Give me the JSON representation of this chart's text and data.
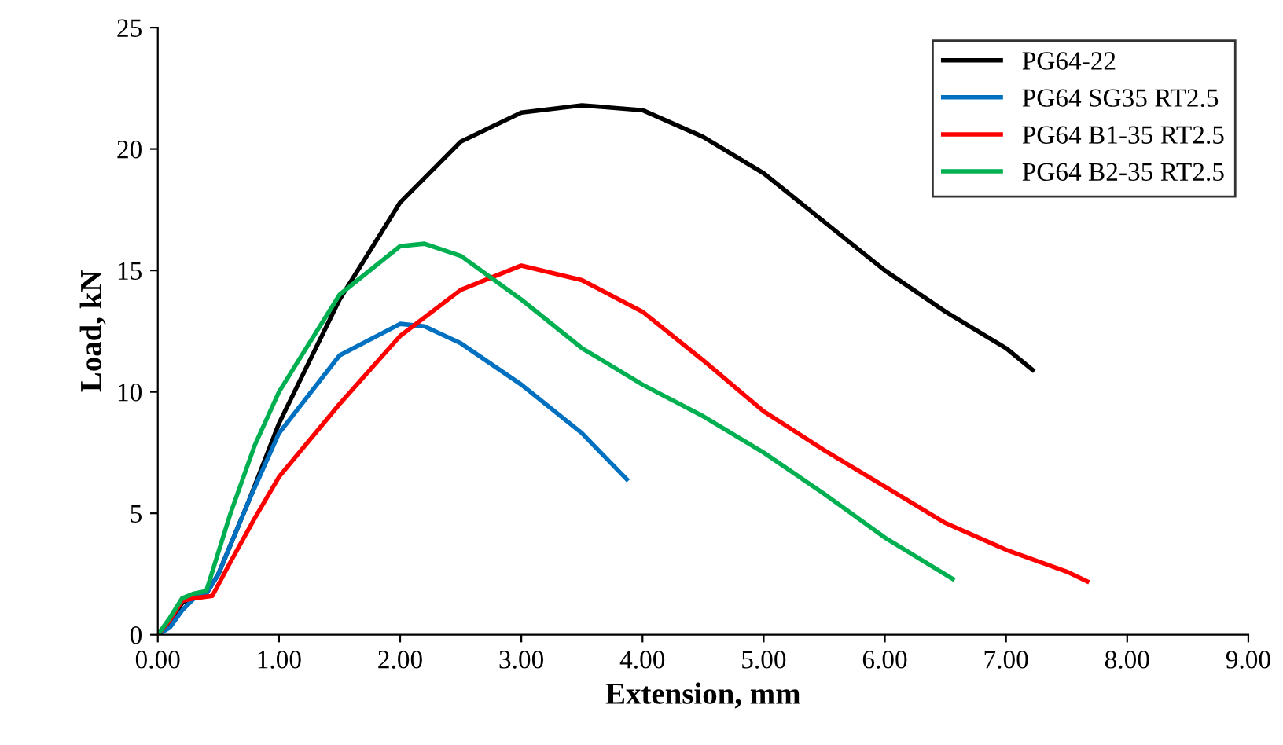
{
  "chart_data": {
    "type": "line",
    "xlabel": "Extension, mm",
    "ylabel": "Load, kN",
    "xlim": [
      0,
      9
    ],
    "ylim": [
      0,
      25
    ],
    "xticks": [
      {
        "value": 0,
        "label": "0.00"
      },
      {
        "value": 1,
        "label": "1.00"
      },
      {
        "value": 2,
        "label": "2.00"
      },
      {
        "value": 3,
        "label": "3.00"
      },
      {
        "value": 4,
        "label": "4.00"
      },
      {
        "value": 5,
        "label": "5.00"
      },
      {
        "value": 6,
        "label": "6.00"
      },
      {
        "value": 7,
        "label": "7.00"
      },
      {
        "value": 8,
        "label": "8.00"
      },
      {
        "value": 9,
        "label": "9.00"
      }
    ],
    "yticks": [
      0,
      5,
      10,
      15,
      20,
      25
    ],
    "grid": false,
    "legend": "top right",
    "marker": "none",
    "line_style": "solid",
    "series": [
      {
        "name": "PG64-22",
        "color": "#000000",
        "x": [
          0,
          0.1,
          0.2,
          0.3,
          0.4,
          0.5,
          0.75,
          1.0,
          1.5,
          2.0,
          2.5,
          3.0,
          3.5,
          4.0,
          4.5,
          5.0,
          5.5,
          6.0,
          6.5,
          7.0,
          7.22
        ],
        "values": [
          0,
          0.5,
          1.3,
          1.6,
          1.7,
          2.5,
          5.5,
          8.7,
          13.8,
          17.8,
          20.3,
          21.5,
          21.8,
          21.6,
          20.5,
          19.0,
          17.0,
          15.0,
          13.3,
          11.8,
          10.9
        ]
      },
      {
        "name": "PG64 SG35 RT2.5",
        "color": "#0070c0",
        "x": [
          0,
          0.1,
          0.2,
          0.3,
          0.4,
          0.5,
          0.75,
          1.0,
          1.5,
          2.0,
          2.2,
          2.5,
          3.0,
          3.5,
          3.87
        ],
        "values": [
          0,
          0.3,
          1.0,
          1.5,
          1.7,
          2.5,
          5.5,
          8.3,
          11.5,
          12.8,
          12.7,
          12.0,
          10.3,
          8.3,
          6.4
        ]
      },
      {
        "name": "PG64 B1-35 RT2.5",
        "color": "#ff0000",
        "x": [
          0,
          0.1,
          0.2,
          0.3,
          0.45,
          0.6,
          0.8,
          1.0,
          1.5,
          2.0,
          2.5,
          3.0,
          3.5,
          4.0,
          4.5,
          5.0,
          5.5,
          6.0,
          6.5,
          7.0,
          7.5,
          7.67
        ],
        "values": [
          0,
          0.6,
          1.4,
          1.5,
          1.6,
          3.0,
          4.8,
          6.5,
          9.5,
          12.3,
          14.2,
          15.2,
          14.6,
          13.3,
          11.3,
          9.2,
          7.6,
          6.1,
          4.6,
          3.5,
          2.6,
          2.2
        ]
      },
      {
        "name": "PG64 B2-35 RT2.5",
        "color": "#00b050",
        "x": [
          0,
          0.1,
          0.2,
          0.3,
          0.4,
          0.6,
          0.8,
          1.0,
          1.5,
          2.0,
          2.2,
          2.5,
          3.0,
          3.5,
          4.0,
          4.5,
          5.0,
          5.5,
          6.0,
          6.56
        ],
        "values": [
          0,
          0.7,
          1.5,
          1.7,
          1.8,
          5.0,
          7.8,
          10.0,
          14.0,
          16.0,
          16.1,
          15.6,
          13.8,
          11.8,
          10.3,
          9.0,
          7.5,
          5.8,
          4.0,
          2.3
        ]
      }
    ]
  }
}
